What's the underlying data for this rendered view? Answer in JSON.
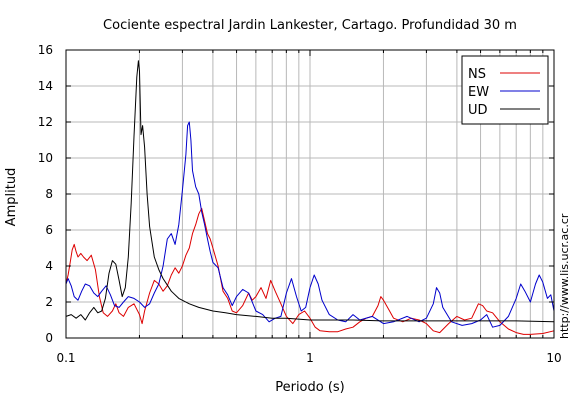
{
  "chart_data": {
    "type": "line",
    "title": "Cociente espectral Jardin Lankester, Cartago. Profundidad 30 m",
    "xlabel": "Periodo (s)",
    "ylabel": "Amplitud",
    "x_scale": "log",
    "xlim": [
      0.1,
      10
    ],
    "ylim": [
      0,
      16
    ],
    "x_tick_labels": [
      {
        "value": 0.1,
        "label": "0.1"
      },
      {
        "value": 1,
        "label": "1"
      },
      {
        "value": 10,
        "label": "10"
      }
    ],
    "y_ticks": [
      0,
      2,
      4,
      6,
      8,
      10,
      12,
      14,
      16
    ],
    "grid": true,
    "legend_position": "top-right",
    "series": [
      {
        "name": "NS",
        "color": "#dd0000",
        "points": [
          [
            0.1,
            3.0
          ],
          [
            0.102,
            3.5
          ],
          [
            0.104,
            4.2
          ],
          [
            0.106,
            4.9
          ],
          [
            0.108,
            5.2
          ],
          [
            0.11,
            4.8
          ],
          [
            0.112,
            4.5
          ],
          [
            0.115,
            4.7
          ],
          [
            0.118,
            4.5
          ],
          [
            0.122,
            4.3
          ],
          [
            0.127,
            4.6
          ],
          [
            0.132,
            3.8
          ],
          [
            0.137,
            2.3
          ],
          [
            0.142,
            1.4
          ],
          [
            0.148,
            1.2
          ],
          [
            0.155,
            1.5
          ],
          [
            0.16,
            1.9
          ],
          [
            0.165,
            1.4
          ],
          [
            0.172,
            1.2
          ],
          [
            0.18,
            1.7
          ],
          [
            0.19,
            1.9
          ],
          [
            0.2,
            1.3
          ],
          [
            0.205,
            0.8
          ],
          [
            0.21,
            1.5
          ],
          [
            0.22,
            2.5
          ],
          [
            0.23,
            3.2
          ],
          [
            0.24,
            3.0
          ],
          [
            0.25,
            2.6
          ],
          [
            0.26,
            2.9
          ],
          [
            0.27,
            3.5
          ],
          [
            0.28,
            3.9
          ],
          [
            0.29,
            3.6
          ],
          [
            0.3,
            4.0
          ],
          [
            0.31,
            4.6
          ],
          [
            0.32,
            5.0
          ],
          [
            0.33,
            5.8
          ],
          [
            0.34,
            6.3
          ],
          [
            0.35,
            6.9
          ],
          [
            0.36,
            7.2
          ],
          [
            0.37,
            6.5
          ],
          [
            0.38,
            5.8
          ],
          [
            0.39,
            5.5
          ],
          [
            0.4,
            5.0
          ],
          [
            0.42,
            4.0
          ],
          [
            0.44,
            2.6
          ],
          [
            0.46,
            2.2
          ],
          [
            0.48,
            1.5
          ],
          [
            0.5,
            1.4
          ],
          [
            0.53,
            1.8
          ],
          [
            0.56,
            2.5
          ],
          [
            0.58,
            2.1
          ],
          [
            0.6,
            2.3
          ],
          [
            0.63,
            2.8
          ],
          [
            0.66,
            2.2
          ],
          [
            0.69,
            3.2
          ],
          [
            0.72,
            2.6
          ],
          [
            0.76,
            1.9
          ],
          [
            0.8,
            1.2
          ],
          [
            0.85,
            0.8
          ],
          [
            0.9,
            1.3
          ],
          [
            0.95,
            1.5
          ],
          [
            1.0,
            1.1
          ],
          [
            1.05,
            0.6
          ],
          [
            1.1,
            0.4
          ],
          [
            1.2,
            0.35
          ],
          [
            1.3,
            0.35
          ],
          [
            1.4,
            0.5
          ],
          [
            1.5,
            0.6
          ],
          [
            1.6,
            0.9
          ],
          [
            1.7,
            1.1
          ],
          [
            1.8,
            1.2
          ],
          [
            1.9,
            1.8
          ],
          [
            1.95,
            2.3
          ],
          [
            2.0,
            2.1
          ],
          [
            2.1,
            1.6
          ],
          [
            2.2,
            1.1
          ],
          [
            2.4,
            0.9
          ],
          [
            2.6,
            1.1
          ],
          [
            2.8,
            1.0
          ],
          [
            3.0,
            0.8
          ],
          [
            3.2,
            0.4
          ],
          [
            3.4,
            0.3
          ],
          [
            3.7,
            0.8
          ],
          [
            4.0,
            1.2
          ],
          [
            4.3,
            1.0
          ],
          [
            4.6,
            1.1
          ],
          [
            4.9,
            1.9
          ],
          [
            5.1,
            1.8
          ],
          [
            5.3,
            1.5
          ],
          [
            5.6,
            1.4
          ],
          [
            6.0,
            0.9
          ],
          [
            6.5,
            0.5
          ],
          [
            7.0,
            0.3
          ],
          [
            7.5,
            0.2
          ],
          [
            8.0,
            0.2
          ],
          [
            9.0,
            0.25
          ],
          [
            10.0,
            0.4
          ]
        ]
      },
      {
        "name": "EW",
        "color": "#0000cc",
        "points": [
          [
            0.1,
            3.0
          ],
          [
            0.102,
            3.3
          ],
          [
            0.105,
            2.9
          ],
          [
            0.108,
            2.3
          ],
          [
            0.112,
            2.1
          ],
          [
            0.116,
            2.6
          ],
          [
            0.12,
            3.0
          ],
          [
            0.125,
            2.9
          ],
          [
            0.13,
            2.5
          ],
          [
            0.135,
            2.3
          ],
          [
            0.14,
            2.6
          ],
          [
            0.146,
            2.9
          ],
          [
            0.152,
            2.4
          ],
          [
            0.158,
            1.8
          ],
          [
            0.165,
            1.7
          ],
          [
            0.172,
            2.0
          ],
          [
            0.18,
            2.3
          ],
          [
            0.19,
            2.2
          ],
          [
            0.2,
            2.0
          ],
          [
            0.21,
            1.7
          ],
          [
            0.22,
            1.9
          ],
          [
            0.23,
            2.5
          ],
          [
            0.24,
            3.0
          ],
          [
            0.25,
            4.0
          ],
          [
            0.26,
            5.5
          ],
          [
            0.27,
            5.8
          ],
          [
            0.28,
            5.2
          ],
          [
            0.29,
            6.3
          ],
          [
            0.3,
            8.2
          ],
          [
            0.31,
            10.2
          ],
          [
            0.315,
            11.8
          ],
          [
            0.32,
            12.0
          ],
          [
            0.325,
            11.0
          ],
          [
            0.33,
            9.3
          ],
          [
            0.34,
            8.4
          ],
          [
            0.35,
            8.0
          ],
          [
            0.36,
            7.0
          ],
          [
            0.37,
            6.3
          ],
          [
            0.38,
            5.5
          ],
          [
            0.39,
            4.8
          ],
          [
            0.4,
            4.2
          ],
          [
            0.42,
            3.9
          ],
          [
            0.44,
            2.8
          ],
          [
            0.46,
            2.4
          ],
          [
            0.48,
            1.8
          ],
          [
            0.5,
            2.3
          ],
          [
            0.53,
            2.7
          ],
          [
            0.56,
            2.5
          ],
          [
            0.6,
            1.5
          ],
          [
            0.64,
            1.3
          ],
          [
            0.68,
            0.9
          ],
          [
            0.72,
            1.1
          ],
          [
            0.76,
            1.2
          ],
          [
            0.8,
            2.5
          ],
          [
            0.84,
            3.3
          ],
          [
            0.88,
            2.3
          ],
          [
            0.92,
            1.5
          ],
          [
            0.96,
            1.7
          ],
          [
            1.0,
            2.8
          ],
          [
            1.04,
            3.5
          ],
          [
            1.08,
            3.0
          ],
          [
            1.12,
            2.1
          ],
          [
            1.2,
            1.3
          ],
          [
            1.3,
            1.0
          ],
          [
            1.4,
            0.9
          ],
          [
            1.5,
            1.3
          ],
          [
            1.6,
            1.0
          ],
          [
            1.8,
            1.2
          ],
          [
            2.0,
            0.8
          ],
          [
            2.2,
            0.9
          ],
          [
            2.5,
            1.2
          ],
          [
            2.8,
            0.9
          ],
          [
            3.0,
            1.1
          ],
          [
            3.2,
            1.9
          ],
          [
            3.3,
            2.8
          ],
          [
            3.4,
            2.5
          ],
          [
            3.5,
            1.7
          ],
          [
            3.8,
            0.9
          ],
          [
            4.2,
            0.7
          ],
          [
            4.6,
            0.8
          ],
          [
            5.0,
            1.0
          ],
          [
            5.3,
            1.3
          ],
          [
            5.6,
            0.6
          ],
          [
            6.0,
            0.7
          ],
          [
            6.5,
            1.2
          ],
          [
            7.0,
            2.2
          ],
          [
            7.3,
            3.0
          ],
          [
            7.6,
            2.6
          ],
          [
            8.0,
            2.0
          ],
          [
            8.4,
            3.0
          ],
          [
            8.7,
            3.5
          ],
          [
            9.0,
            3.1
          ],
          [
            9.4,
            2.2
          ],
          [
            9.7,
            2.4
          ],
          [
            10.0,
            1.5
          ]
        ]
      },
      {
        "name": "UD",
        "color": "#000000",
        "points": [
          [
            0.1,
            1.2
          ],
          [
            0.105,
            1.3
          ],
          [
            0.11,
            1.1
          ],
          [
            0.115,
            1.3
          ],
          [
            0.12,
            1.0
          ],
          [
            0.125,
            1.4
          ],
          [
            0.13,
            1.7
          ],
          [
            0.135,
            1.4
          ],
          [
            0.14,
            1.5
          ],
          [
            0.145,
            2.2
          ],
          [
            0.15,
            3.6
          ],
          [
            0.155,
            4.3
          ],
          [
            0.16,
            4.1
          ],
          [
            0.165,
            3.2
          ],
          [
            0.17,
            2.3
          ],
          [
            0.175,
            2.8
          ],
          [
            0.18,
            4.5
          ],
          [
            0.185,
            7.5
          ],
          [
            0.19,
            11.2
          ],
          [
            0.195,
            14.5
          ],
          [
            0.198,
            15.4
          ],
          [
            0.2,
            14.8
          ],
          [
            0.203,
            11.3
          ],
          [
            0.206,
            11.8
          ],
          [
            0.21,
            10.6
          ],
          [
            0.215,
            8.0
          ],
          [
            0.22,
            6.2
          ],
          [
            0.23,
            4.5
          ],
          [
            0.24,
            3.8
          ],
          [
            0.25,
            3.3
          ],
          [
            0.27,
            2.6
          ],
          [
            0.29,
            2.2
          ],
          [
            0.32,
            1.9
          ],
          [
            0.35,
            1.7
          ],
          [
            0.4,
            1.5
          ],
          [
            0.45,
            1.4
          ],
          [
            0.5,
            1.3
          ],
          [
            0.6,
            1.2
          ],
          [
            0.7,
            1.1
          ],
          [
            0.8,
            1.1
          ],
          [
            1.0,
            1.0
          ],
          [
            1.5,
            1.0
          ],
          [
            2.0,
            0.95
          ],
          [
            3.0,
            0.95
          ],
          [
            4.0,
            0.95
          ],
          [
            5.0,
            0.95
          ],
          [
            7.0,
            0.95
          ],
          [
            10.0,
            0.9
          ]
        ]
      }
    ]
  },
  "side_text": "http://www.lis.ucr.ac.cr"
}
